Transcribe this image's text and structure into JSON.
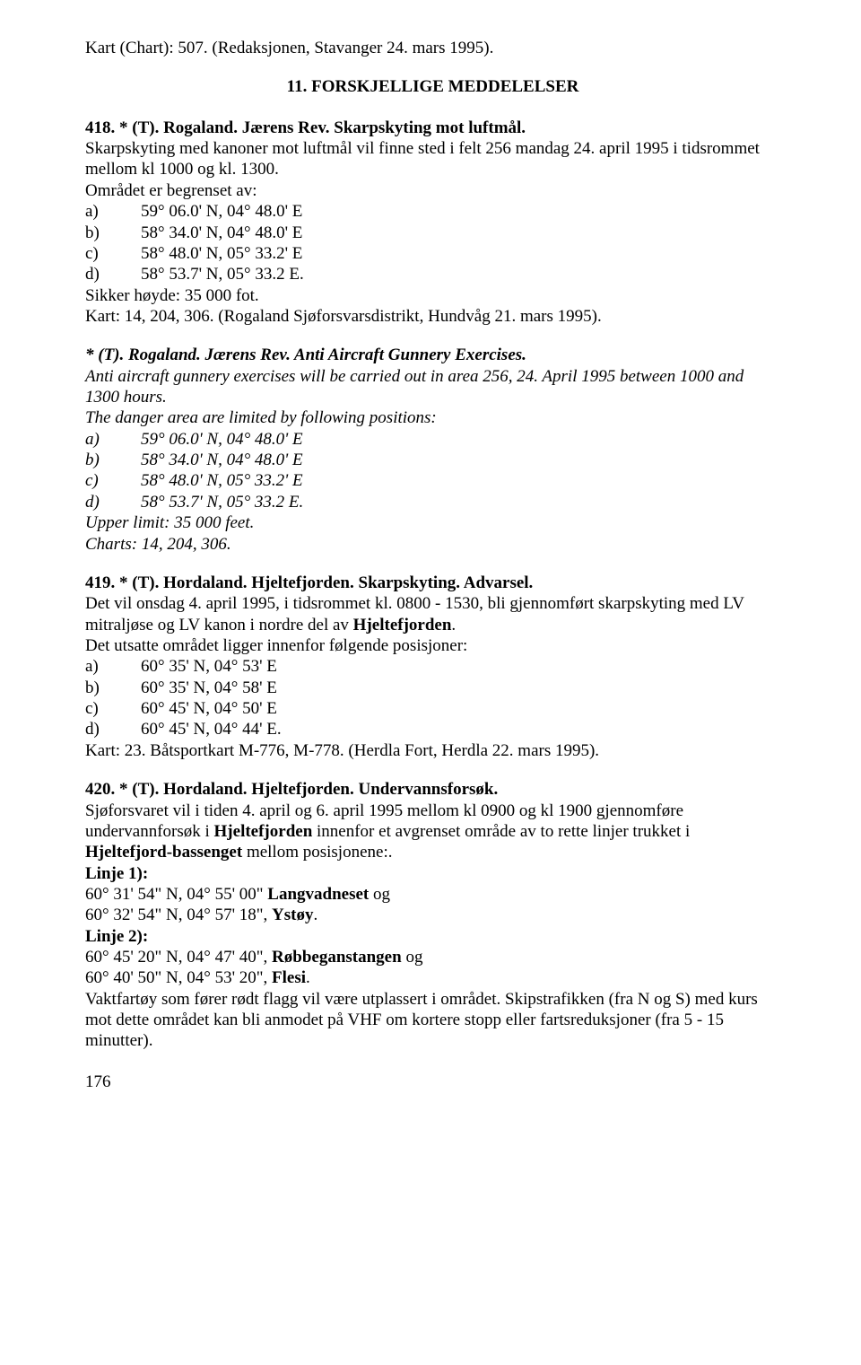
{
  "chart_line": "Kart (Chart): 507. (Redaksjonen, Stavanger 24. mars 1995).",
  "section_title": "11. FORSKJELLIGE MEDDELELSER",
  "s418": {
    "title": "418. * (T). Rogaland. Jærens Rev. Skarpskyting mot luftmål.",
    "p1": "Skarpskyting med kanoner mot luftmål vil finne sted i felt 256 mandag 24. april 1995 i tidsrommet mellom kl 1000 og kl. 1300.",
    "p2": "Området er begrenset av:",
    "a": {
      "k": "a)",
      "v": "59° 06.0' N, 04° 48.0' E"
    },
    "b": {
      "k": "b)",
      "v": "58° 34.0' N, 04° 48.0' E"
    },
    "c": {
      "k": "c)",
      "v": "58° 48.0' N, 05° 33.2' E"
    },
    "d": {
      "k": "d)",
      "v": "58° 53.7' N, 05° 33.2 E."
    },
    "p3": "Sikker høyde: 35 000 fot.",
    "p4": "Kart: 14, 204, 306. (Rogaland Sjøforsvarsdistrikt, Hundvåg 21. mars 1995).",
    "en_title": "* (T). Rogaland. Jærens Rev. Anti Aircraft Gunnery Exercises.",
    "en_p1": "Anti aircraft gunnery exercises will be carried out in area 256, 24. April 1995 between 1000 and 1300 hours.",
    "en_p2": "The danger area are limited by following positions:",
    "ea": {
      "k": "a)",
      "v": "59° 06.0' N, 04° 48.0' E"
    },
    "eb": {
      "k": "b)",
      "v": "58° 34.0' N, 04° 48.0' E"
    },
    "ec": {
      "k": "c)",
      "v": "58° 48.0' N, 05° 33.2' E"
    },
    "ed": {
      "k": "d)",
      "v": "58° 53.7' N, 05° 33.2 E."
    },
    "en_p3": "Upper limit: 35 000 feet.",
    "en_p4": "Charts: 14, 204, 306."
  },
  "s419": {
    "title": "419. * (T). Hordaland. Hjeltefjorden. Skarpskyting. Advarsel.",
    "p1a": "Det vil onsdag 4. april 1995, i tidsrommet kl. 0800 - 1530, bli gjennomført skarpskyting med LV mitraljøse og LV kanon i nordre del av ",
    "p1b": "Hjeltefjorden",
    "p1c": ".",
    "p2": "Det utsatte området ligger innenfor følgende posisjoner:",
    "a": {
      "k": "a)",
      "v": "60° 35' N, 04° 53' E"
    },
    "b": {
      "k": "b)",
      "v": "60° 35' N, 04° 58' E"
    },
    "c": {
      "k": "c)",
      "v": "60° 45' N, 04° 50' E"
    },
    "d": {
      "k": "d)",
      "v": "60° 45' N, 04° 44' E."
    },
    "p3": "Kart: 23. Båtsportkart M-776, M-778. (Herdla Fort, Herdla 22. mars 1995)."
  },
  "s420": {
    "title": "420. * (T). Hordaland. Hjeltefjorden. Undervannsforsøk.",
    "p1a": "Sjøforsvaret vil i tiden 4. april og 6. april 1995 mellom kl 0900 og kl 1900 gjennomføre undervannforsøk i ",
    "p1b": "Hjeltefjorden",
    "p1c": " innenfor et avgrenset område av to rette linjer trukket i ",
    "p1d": "Hjeltefjord-bassenget",
    "p1e": " mellom posisjonene:.",
    "l1": "Linje 1):",
    "l1a_a": "60° 31' 54\" N, 04° 55' 00\" ",
    "l1a_b": "Langvadneset",
    "l1a_c": " og",
    "l1b_a": "60° 32' 54\" N, 04° 57' 18\", ",
    "l1b_b": "Ystøy",
    "l1b_c": ".",
    "l2": "Linje 2):",
    "l2a_a": "60° 45' 20\" N, 04° 47' 40\", ",
    "l2a_b": "Røbbeganstangen",
    "l2a_c": " og",
    "l2b_a": "60° 40' 50\" N, 04° 53' 20\", ",
    "l2b_b": "Flesi",
    "l2b_c": ".",
    "p2": "Vaktfartøy som fører rødt flagg vil være utplassert i området. Skipstrafikken (fra N og S) med kurs mot dette området kan bli anmodet på VHF om kortere stopp eller fartsreduksjoner (fra 5 - 15 minutter)."
  },
  "page_number": "176"
}
